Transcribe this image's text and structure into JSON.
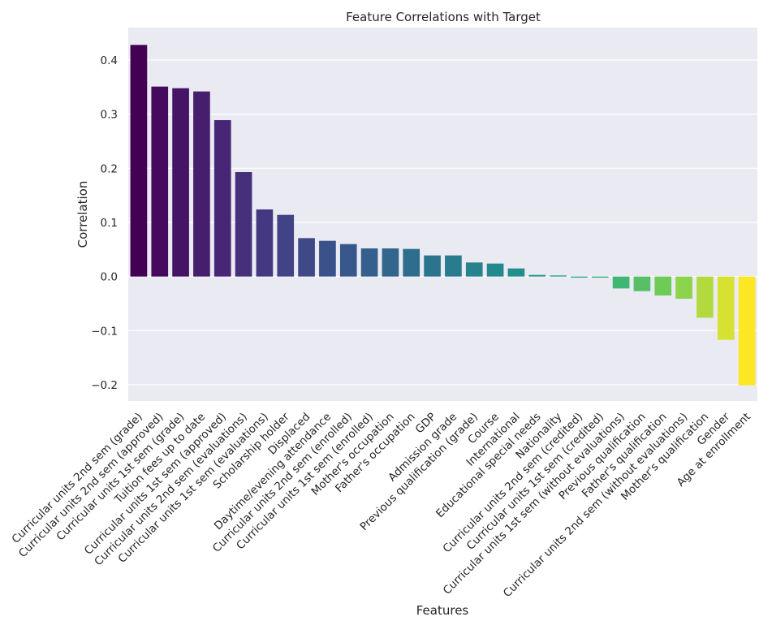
{
  "chart_data": {
    "type": "bar",
    "title": "Feature Correlations with Target",
    "xlabel": "Features",
    "ylabel": "Correlation",
    "ylim": [
      -0.23,
      0.46
    ],
    "yticks": [
      0.4,
      0.3,
      0.2,
      0.1,
      0.0,
      -0.1,
      -0.2
    ],
    "ytick_labels": [
      "0.4",
      "0.3",
      "0.2",
      "0.1",
      "0.0",
      "−0.1",
      "−0.2"
    ],
    "grid": true,
    "background": "#eaeaf2",
    "palette": "viridis",
    "categories": [
      "Curricular units 2nd sem (grade)",
      "Curricular units 2nd sem (approved)",
      "Curricular units 1st sem (grade)",
      "Tuition fees up to date",
      "Curricular units 1st sem (approved)",
      "Curricular units 2nd sem (evaluations)",
      "Curricular units 1st sem (evaluations)",
      "Scholarship holder",
      "Displaced",
      "Daytime/evening attendance\t",
      "Curricular units 2nd sem (enrolled)",
      "Curricular units 1st sem (enrolled)",
      "Mother's occupation",
      "Father's occupation",
      "GDP",
      "Admission grade",
      "Previous qualification (grade)",
      "Course",
      "International",
      "Educational special needs",
      "Nationality",
      "Curricular units 2nd sem (credited)",
      "Curricular units 1st sem (credited)",
      "Curricular units 1st sem (without evaluations)",
      "Previous qualification",
      "Father's qualification",
      "Curricular units 2nd sem (without evaluations)",
      "Mother's qualification",
      "Gender",
      "Age at enrollment"
    ],
    "values": [
      0.428,
      0.351,
      0.348,
      0.342,
      0.289,
      0.193,
      0.124,
      0.114,
      0.071,
      0.066,
      0.06,
      0.052,
      0.052,
      0.051,
      0.039,
      0.039,
      0.026,
      0.024,
      0.015,
      0.003,
      0.002,
      -0.002,
      -0.002,
      -0.022,
      -0.027,
      -0.035,
      -0.041,
      -0.076,
      -0.117,
      -0.201
    ]
  }
}
